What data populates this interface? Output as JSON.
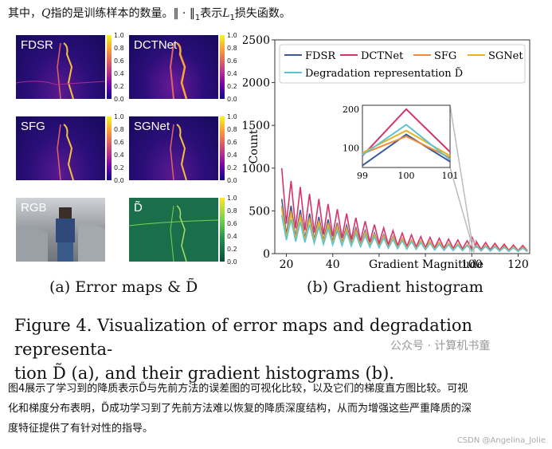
{
  "top_text": {
    "prefix": "其中，",
    "q": "Q",
    "mid": "指的是训练样本的数量。",
    "norm": "‖ · ‖",
    "sub": "1",
    "mid2": "表示",
    "l": "L",
    "lsub": "1",
    "suffix": "损失函数。"
  },
  "panels": {
    "fdsr": "FDSR",
    "dctnet": "DCTNet",
    "sfg": "SFG",
    "sgnet": "SGNet",
    "rgb": "RGB",
    "dtilde": "D̃"
  },
  "colorbar_ticks": [
    "1.0",
    "0.8",
    "0.6",
    "0.4",
    "0.2",
    "0.0"
  ],
  "caption_a": "(a) Error maps & D̃",
  "caption_b": "(b) Gradient histogram",
  "figure_caption_line1": "Figure 4.  Visualization of error maps and degradation representa-",
  "figure_caption_line2": "tion D̃ (a), and their gradient histograms (b).",
  "watermark": "公众号 · 计算机书童",
  "bottom_line1": "图4展示了学习到的降质表示D̃与先前方法的误差图的可视化比较，以及它们的梯度直方图比较。可视",
  "bottom_line2": "化和梯度分布表明，D̃成功学习到了先前方法难以恢复的降质深度结构，从而为增强这些严重降质的深",
  "bottom_line3": "度特征提供了有针对性的指导。",
  "csdn": "CSDN @Angelina_Jolie",
  "chart_data": {
    "type": "line",
    "xlabel": "Gradient Magnitude",
    "ylabel": "Count",
    "xlim": [
      15,
      125
    ],
    "ylim": [
      0,
      2500
    ],
    "xticks": [
      20,
      40,
      60,
      80,
      100,
      120
    ],
    "yticks": [
      0,
      500,
      1000,
      1500,
      2000,
      2500
    ],
    "legend_position": "top",
    "colors": {
      "FDSR": "#3a5a9a",
      "DCTNet": "#d6336c",
      "SFG": "#f08a3c",
      "SGNet": "#e6b422",
      "Degradation representation D̃": "#5bc4d4"
    },
    "series": [
      {
        "name": "FDSR",
        "peaks": [
          [
            18,
            640
          ],
          [
            22,
            560
          ],
          [
            26,
            510
          ],
          [
            30,
            470
          ],
          [
            34,
            430
          ],
          [
            38,
            400
          ],
          [
            42,
            360
          ],
          [
            46,
            330
          ],
          [
            50,
            300
          ],
          [
            54,
            270
          ],
          [
            58,
            240
          ],
          [
            62,
            220
          ],
          [
            66,
            200
          ],
          [
            70,
            180
          ],
          [
            74,
            160
          ],
          [
            78,
            150
          ],
          [
            82,
            140
          ],
          [
            86,
            130
          ],
          [
            90,
            120
          ],
          [
            94,
            110
          ],
          [
            98,
            100
          ],
          [
            102,
            95
          ],
          [
            106,
            90
          ],
          [
            110,
            85
          ],
          [
            114,
            80
          ],
          [
            118,
            75
          ],
          [
            122,
            70
          ]
        ]
      },
      {
        "name": "DCTNet",
        "peaks": [
          [
            18,
            1000
          ],
          [
            22,
            850
          ],
          [
            26,
            780
          ],
          [
            30,
            700
          ],
          [
            34,
            640
          ],
          [
            38,
            580
          ],
          [
            42,
            520
          ],
          [
            46,
            470
          ],
          [
            50,
            420
          ],
          [
            54,
            380
          ],
          [
            58,
            340
          ],
          [
            62,
            300
          ],
          [
            66,
            270
          ],
          [
            70,
            240
          ],
          [
            74,
            220
          ],
          [
            78,
            200
          ],
          [
            82,
            190
          ],
          [
            86,
            180
          ],
          [
            90,
            170
          ],
          [
            94,
            160
          ],
          [
            98,
            150
          ],
          [
            100,
            200
          ],
          [
            102,
            140
          ],
          [
            106,
            130
          ],
          [
            110,
            120
          ],
          [
            114,
            110
          ],
          [
            118,
            100
          ],
          [
            122,
            95
          ]
        ]
      },
      {
        "name": "SFG",
        "peaks": [
          [
            18,
            560
          ],
          [
            22,
            500
          ],
          [
            26,
            460
          ],
          [
            30,
            420
          ],
          [
            34,
            390
          ],
          [
            38,
            360
          ],
          [
            42,
            330
          ],
          [
            46,
            300
          ],
          [
            50,
            275
          ],
          [
            54,
            250
          ],
          [
            58,
            225
          ],
          [
            62,
            205
          ],
          [
            66,
            190
          ],
          [
            70,
            175
          ],
          [
            74,
            160
          ],
          [
            78,
            150
          ],
          [
            82,
            140
          ],
          [
            86,
            130
          ],
          [
            90,
            120
          ],
          [
            94,
            115
          ],
          [
            98,
            105
          ],
          [
            102,
            100
          ],
          [
            106,
            95
          ],
          [
            110,
            90
          ],
          [
            114,
            85
          ],
          [
            118,
            80
          ],
          [
            122,
            75
          ]
        ]
      },
      {
        "name": "SGNet",
        "peaks": [
          [
            18,
            520
          ],
          [
            22,
            470
          ],
          [
            26,
            430
          ],
          [
            30,
            400
          ],
          [
            34,
            370
          ],
          [
            38,
            340
          ],
          [
            42,
            310
          ],
          [
            46,
            285
          ],
          [
            50,
            260
          ],
          [
            54,
            240
          ],
          [
            58,
            220
          ],
          [
            62,
            200
          ],
          [
            66,
            185
          ],
          [
            70,
            170
          ],
          [
            74,
            155
          ],
          [
            78,
            145
          ],
          [
            82,
            135
          ],
          [
            86,
            125
          ],
          [
            90,
            118
          ],
          [
            94,
            110
          ],
          [
            98,
            102
          ],
          [
            102,
            98
          ],
          [
            106,
            92
          ],
          [
            110,
            88
          ],
          [
            114,
            82
          ],
          [
            118,
            78
          ],
          [
            122,
            72
          ]
        ]
      },
      {
        "name": "Degradation representation D̃",
        "peaks": [
          [
            18,
            450
          ],
          [
            22,
            400
          ],
          [
            26,
            370
          ],
          [
            30,
            340
          ],
          [
            34,
            310
          ],
          [
            38,
            290
          ],
          [
            42,
            270
          ],
          [
            46,
            250
          ],
          [
            50,
            230
          ],
          [
            54,
            210
          ],
          [
            58,
            195
          ],
          [
            62,
            180
          ],
          [
            66,
            165
          ],
          [
            70,
            150
          ],
          [
            74,
            140
          ],
          [
            78,
            130
          ],
          [
            82,
            120
          ],
          [
            86,
            110
          ],
          [
            90,
            105
          ],
          [
            94,
            100
          ],
          [
            98,
            95
          ],
          [
            102,
            90
          ],
          [
            106,
            85
          ],
          [
            110,
            80
          ],
          [
            114,
            75
          ],
          [
            118,
            70
          ],
          [
            122,
            65
          ]
        ]
      }
    ],
    "inset": {
      "x": [
        99,
        100,
        101
      ],
      "ylim": [
        50,
        210
      ],
      "yticks": [
        100,
        200
      ],
      "xticks": [
        99,
        100,
        101
      ],
      "series": [
        {
          "name": "FDSR",
          "values": [
            55,
            135,
            65
          ]
        },
        {
          "name": "DCTNet",
          "values": [
            80,
            200,
            90
          ]
        },
        {
          "name": "SFG",
          "values": [
            85,
            130,
            75
          ]
        },
        {
          "name": "SGNet",
          "values": [
            88,
            145,
            80
          ]
        },
        {
          "name": "Degradation representation D̃",
          "values": [
            82,
            160,
            70
          ]
        }
      ]
    }
  }
}
